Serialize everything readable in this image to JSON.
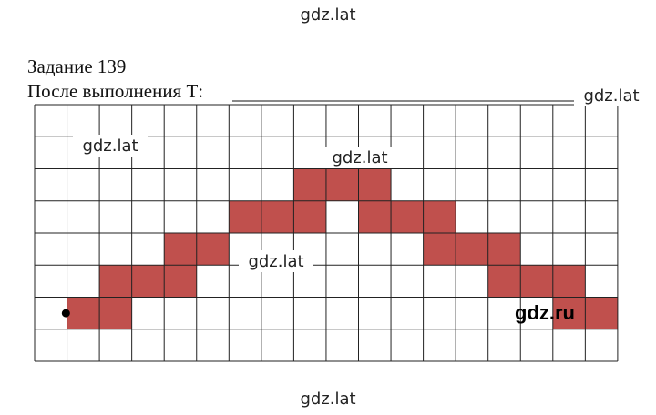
{
  "task": {
    "title": "Задание 139",
    "subtitle": "После выполнения Т:"
  },
  "watermarks": [
    "gdz.lat",
    "gdz.lat",
    "gdz.lat",
    "gdz.lat",
    "gdz.lat",
    "gdz.lat"
  ],
  "brand": "gdz.ru"
}
